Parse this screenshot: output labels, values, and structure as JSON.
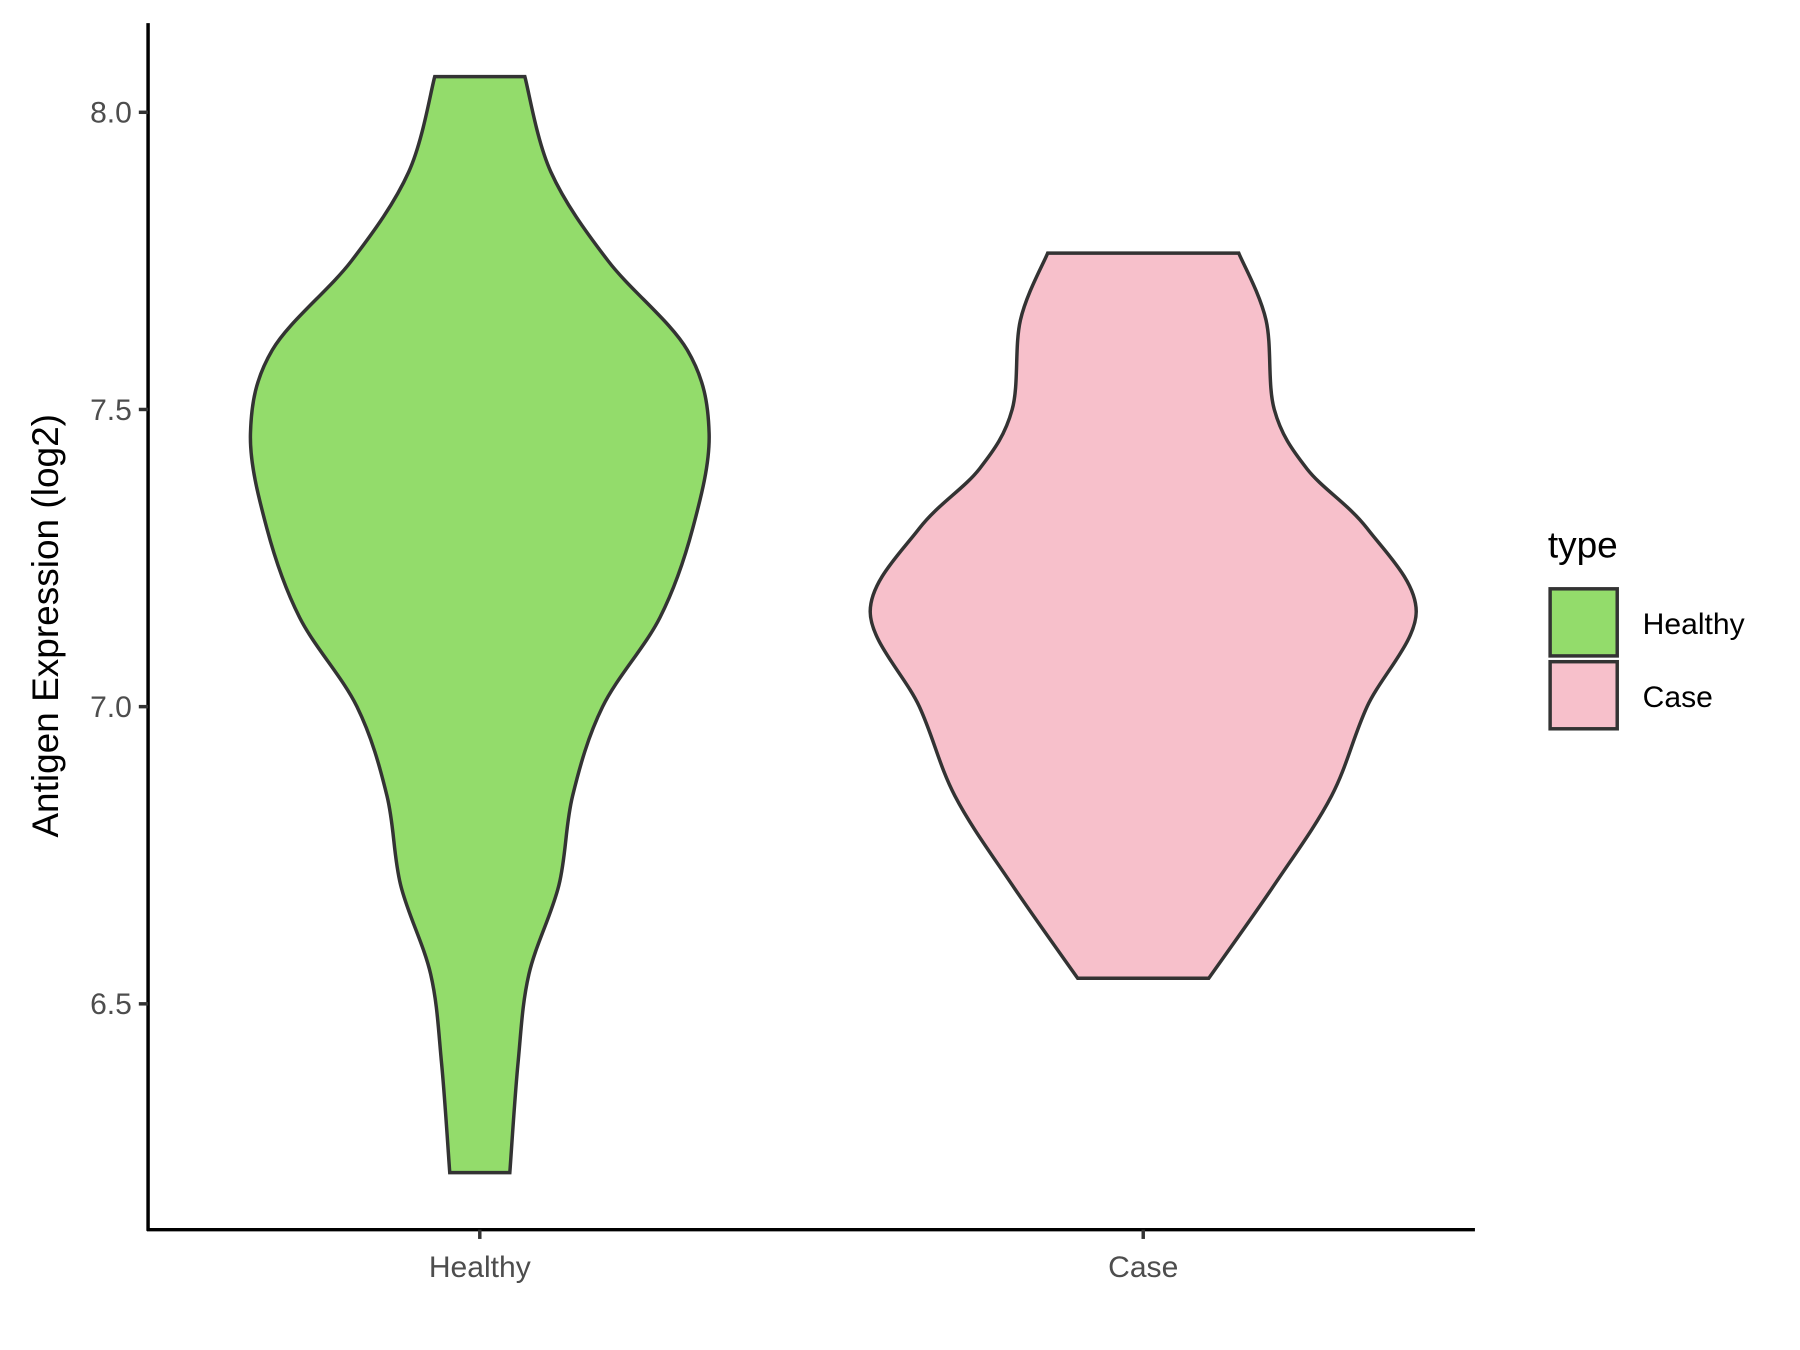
{
  "chart_data": {
    "type": "violin",
    "y_label": "Antigen Expression (log2)",
    "categories": [
      "Healthy",
      "Case"
    ],
    "ylim": [
      6.12,
      8.15
    ],
    "yticks": [
      6.5,
      {
        "value": 7,
        "label": "7.0"
      },
      7.5,
      {
        "value": 8,
        "label": "8.0"
      }
    ],
    "legend_title": "type",
    "legend_position": "right",
    "violins": [
      {
        "name": "Healthy",
        "color": "#93dc6b",
        "y": [
          6.216,
          6.4,
          6.55,
          6.7,
          6.85,
          7.0,
          7.15,
          7.3,
          7.46,
          7.6,
          7.75,
          7.9,
          8.06
        ],
        "density": [
          0.11,
          0.14,
          0.18,
          0.29,
          0.34,
          0.45,
          0.66,
          0.78,
          0.84,
          0.76,
          0.47,
          0.26,
          0.165
        ]
      },
      {
        "name": "Case",
        "color": "#f7c0cb",
        "y": [
          6.543,
          6.7,
          6.85,
          7.0,
          7.16,
          7.3,
          7.4,
          7.5,
          7.65,
          7.763
        ],
        "density": [
          0.24,
          0.48,
          0.69,
          0.82,
          1.0,
          0.82,
          0.6,
          0.48,
          0.45,
          0.35
        ]
      }
    ]
  }
}
